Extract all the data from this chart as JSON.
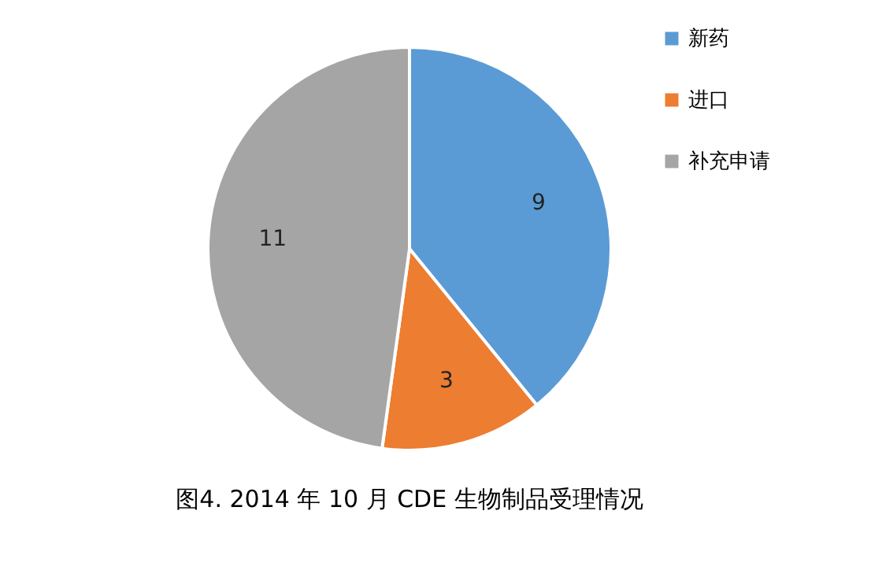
{
  "chart_data": {
    "type": "pie",
    "title": "图4. 2014 年 10 月 CDE 生物制品受理情况",
    "categories": [
      "新药",
      "进口",
      "补充申请"
    ],
    "values": [
      9,
      3,
      11
    ],
    "colors": [
      "#5b9bd5",
      "#ed7d31",
      "#a5a5a5"
    ],
    "data_labels": true,
    "legend": "right"
  }
}
